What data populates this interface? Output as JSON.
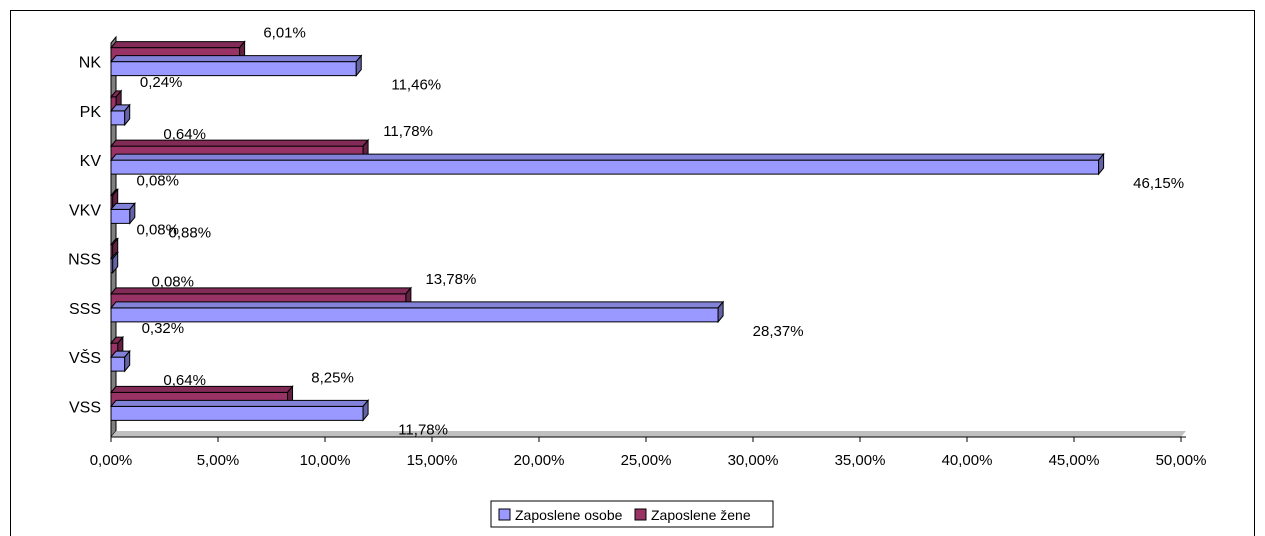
{
  "chart_data": {
    "type": "bar",
    "orientation": "horizontal",
    "categories": [
      "NK",
      "PK",
      "KV",
      "VKV",
      "NSS",
      "SSS",
      "VŠS",
      "VSS"
    ],
    "series": [
      {
        "name": "Zaposlene osobe",
        "color": "#9999ff",
        "values": [
          11.46,
          0.64,
          46.15,
          0.88,
          0.08,
          28.37,
          0.64,
          11.78
        ],
        "labels": [
          "11,46%",
          "0,64%",
          "46,15%",
          "0,88%",
          "0,08%",
          "28,37%",
          "0,64%",
          "11,78%"
        ]
      },
      {
        "name": "Zaposlene žene",
        "color": "#993366",
        "values": [
          6.01,
          0.24,
          11.78,
          0.08,
          0.08,
          13.78,
          0.32,
          8.25
        ],
        "labels": [
          "6,01%",
          "0,24%",
          "11,78%",
          "0,08%",
          "0,08%",
          "13,78%",
          "0,32%",
          "8,25%"
        ]
      }
    ],
    "xlim": [
      0,
      50
    ],
    "xticks": [
      0,
      5,
      10,
      15,
      20,
      25,
      30,
      35,
      40,
      45,
      50
    ],
    "xtick_labels": [
      "0,00%",
      "5,00%",
      "10,00%",
      "15,00%",
      "20,00%",
      "25,00%",
      "30,00%",
      "35,00%",
      "40,00%",
      "45,00%",
      "50,00%"
    ],
    "grid": false,
    "legend": "bottom-center",
    "style": "3d"
  }
}
